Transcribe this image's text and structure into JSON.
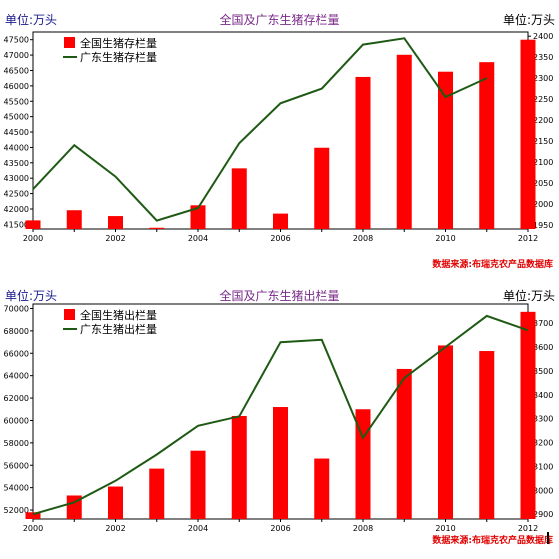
{
  "chart_data": [
    {
      "type": "bar",
      "title": "全国及广东生猪存栏量",
      "unit_left": "单位:万头",
      "unit_right": "单位:万头",
      "source": "数据来源:布瑞克农产品数据库",
      "x": [
        2000,
        2001,
        2002,
        2003,
        2004,
        2005,
        2006,
        2007,
        2008,
        2009,
        2010,
        2011,
        2012
      ],
      "x_ticks": [
        "2000",
        "2002",
        "2004",
        "2006",
        "2008",
        "2010",
        "2012"
      ],
      "y_left": {
        "min": 41350,
        "max": 47750,
        "ticks": [
          41500,
          42000,
          42500,
          43000,
          43500,
          44000,
          44500,
          45000,
          45500,
          46000,
          46500,
          47000,
          47500
        ]
      },
      "y_right": {
        "min": 1940,
        "max": 2410,
        "ticks": [
          1950,
          2000,
          2050,
          2100,
          2150,
          2200,
          2250,
          2300,
          2350,
          2400
        ]
      },
      "series": [
        {
          "name": "全国生猪存栏量",
          "kind": "bar",
          "axis": "left",
          "color": "#ff0000",
          "values": [
            41630,
            41960,
            41770,
            41390,
            42120,
            43320,
            41850,
            43990,
            46290,
            47010,
            46460,
            46770,
            47500
          ]
        },
        {
          "name": "广东生猪存栏量",
          "kind": "line",
          "axis": "right",
          "color": "#1e5a14",
          "values": [
            2035,
            2140,
            2065,
            1960,
            1990,
            2145,
            2240,
            2275,
            2380,
            2395,
            2255,
            2300,
            null
          ]
        }
      ]
    },
    {
      "type": "bar",
      "title": "全国及广东生猪出栏量",
      "unit_left": "单位:万头",
      "unit_right": "单位:万头",
      "source": "数据来源:布瑞克农产品数据库",
      "x": [
        2000,
        2001,
        2002,
        2003,
        2004,
        2005,
        2006,
        2007,
        2008,
        2009,
        2010,
        2011,
        2012
      ],
      "x_ticks": [
        "2000",
        "2002",
        "2004",
        "2006",
        "2008",
        "2010",
        "2012"
      ],
      "y_left": {
        "min": 51200,
        "max": 70400,
        "ticks": [
          52000,
          54000,
          56000,
          58000,
          60000,
          62000,
          64000,
          66000,
          68000,
          70000
        ]
      },
      "y_right": {
        "min": 2880,
        "max": 3780,
        "ticks": [
          2900,
          3000,
          3100,
          3200,
          3300,
          3400,
          3500,
          3600,
          3700
        ]
      },
      "series": [
        {
          "name": "全国生猪出栏量",
          "kind": "bar",
          "axis": "left",
          "color": "#ff0000",
          "values": [
            51800,
            53300,
            54100,
            55700,
            57300,
            60400,
            61200,
            56600,
            61000,
            64600,
            66700,
            66200,
            69700
          ]
        },
        {
          "name": "广东生猪出栏量",
          "kind": "line",
          "axis": "right",
          "color": "#1e5a14",
          "values": [
            2900,
            2950,
            3040,
            3150,
            3270,
            3310,
            3620,
            3630,
            3220,
            3470,
            3600,
            3730,
            3670
          ]
        }
      ]
    }
  ]
}
